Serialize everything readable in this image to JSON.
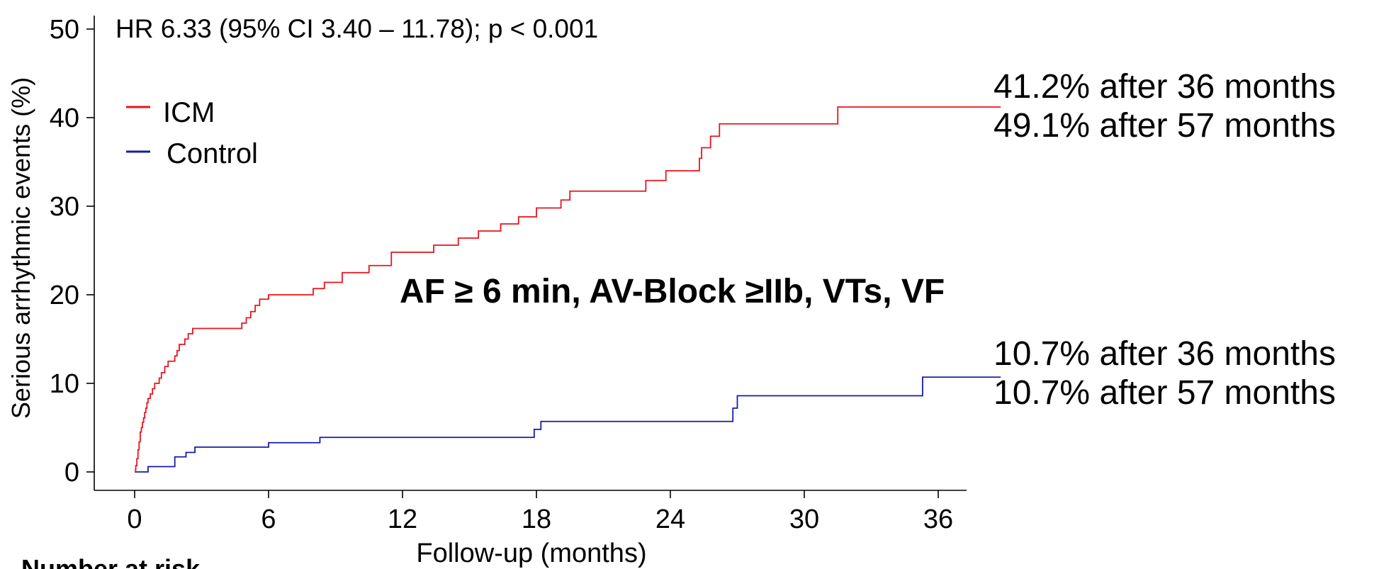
{
  "chart_data": {
    "type": "line",
    "xlabel": "Follow-up (months)",
    "ylabel": "Serious arrhythmic events (%)",
    "xlim": [
      -5.5,
      38.8
    ],
    "ylim": [
      -2.5,
      51
    ],
    "xticks": [
      0,
      6,
      12,
      18,
      24,
      30,
      36
    ],
    "yticks": [
      0,
      10,
      20,
      30,
      40,
      50
    ],
    "grid": false,
    "legend_position": "upper-left",
    "series": [
      {
        "name": "ICM",
        "color": "#e8141c",
        "x": [
          0,
          0.05,
          0.1,
          0.15,
          0.2,
          0.25,
          0.3,
          0.35,
          0.4,
          0.45,
          0.5,
          0.55,
          0.6,
          0.7,
          0.8,
          0.9,
          1.0,
          1.1,
          1.2,
          1.35,
          1.5,
          1.8,
          1.9,
          2.0,
          2.1,
          2.25,
          2.4,
          2.6,
          2.8,
          3.0,
          3.2,
          3.4,
          3.6,
          3.8,
          4.8,
          5.0,
          5.2,
          5.4,
          5.6,
          5.8,
          6.0,
          6.4,
          6.8,
          8.0,
          8.5,
          9.3,
          9.8,
          10.5,
          11.5,
          12.2,
          13.4,
          14.5,
          15.4,
          16.4,
          17.2,
          18.0,
          18.8,
          19.1,
          19.5,
          21.3,
          22.9,
          23.8,
          25.3,
          25.4,
          25.8,
          26.2,
          27.0,
          31.0,
          31.5,
          38.8
        ],
        "y": [
          0.2,
          0.7,
          1.5,
          2.5,
          3.4,
          4.5,
          5.0,
          5.6,
          6.1,
          6.7,
          7.2,
          7.8,
          8.3,
          8.8,
          9.4,
          10.0,
          10.0,
          10.6,
          11.2,
          11.9,
          12.5,
          13.1,
          13.7,
          14.4,
          14.4,
          15.0,
          15.6,
          16.2,
          16.2,
          16.2,
          16.2,
          16.2,
          16.2,
          16.2,
          16.8,
          17.4,
          18.1,
          18.8,
          19.5,
          19.5,
          20.0,
          20.0,
          20.0,
          20.7,
          21.4,
          22.5,
          22.5,
          23.3,
          24.8,
          24.8,
          25.6,
          26.4,
          27.2,
          28.0,
          28.8,
          29.8,
          29.8,
          30.7,
          31.7,
          31.7,
          32.9,
          34.0,
          35.4,
          36.6,
          37.9,
          39.3,
          39.3,
          39.3,
          41.2,
          41.2
        ]
      },
      {
        "name": "Control",
        "color": "#1a1aa6",
        "x": [
          0,
          0.6,
          1.8,
          2.3,
          2.7,
          6.0,
          8.3,
          17.9,
          18.2,
          26.8,
          27.0,
          35.3,
          38.8
        ],
        "y": [
          0,
          0.6,
          1.7,
          2.2,
          2.8,
          3.3,
          3.9,
          4.8,
          5.7,
          7.2,
          8.6,
          10.7,
          10.7
        ]
      }
    ],
    "annotations": {
      "hr_text": "HR 6.33 (95% CI 3.40 – 11.78); p < 0.001",
      "center_text": "AF ≥ 6 min, AV-Block ≥IIb, VTs, VF",
      "icm_36": "41.2% after 36 months",
      "icm_57": "49.1% after 57 months",
      "ctrl_36": "10.7% after 36 months",
      "ctrl_57": "10.7% after 57 months"
    },
    "risk_table_header": "Number at risk"
  }
}
